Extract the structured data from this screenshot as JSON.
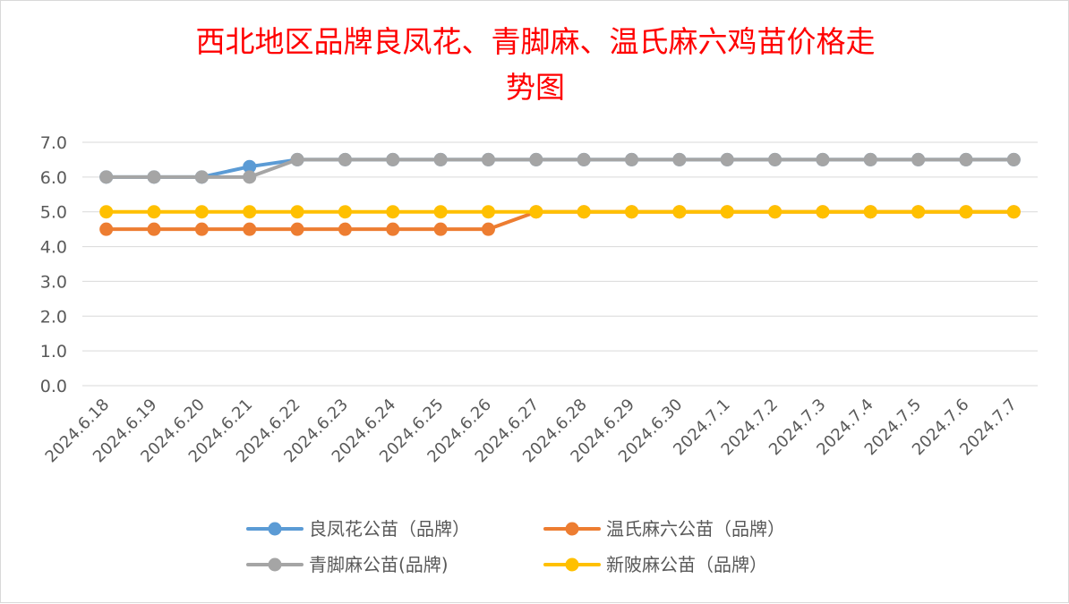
{
  "chart_data": {
    "type": "line",
    "title_lines": [
      "西北地区品牌良凤花、青脚麻、温氏麻六鸡苗价格走",
      "势图"
    ],
    "categories": [
      "2024.6.18",
      "2024.6.19",
      "2024.6.20",
      "2024.6.21",
      "2024.6.22",
      "2024.6.23",
      "2024.6.24",
      "2024.6.25",
      "2024.6.26",
      "2024.6.27",
      "2024.6.28",
      "2024.6.29",
      "2024.6.30",
      "2024.7.1",
      "2024.7.2",
      "2024.7.3",
      "2024.7.4",
      "2024.7.5",
      "2024.7.6",
      "2024.7.7"
    ],
    "y_ticks": [
      "0.0",
      "1.0",
      "2.0",
      "3.0",
      "4.0",
      "5.0",
      "6.0",
      "7.0"
    ],
    "ylim": [
      0,
      7
    ],
    "grid": true,
    "legend_position": "bottom",
    "series": [
      {
        "name": "良凤花公苗（品牌）",
        "color": "#5b9bd5",
        "values": [
          6.0,
          6.0,
          6.0,
          6.3,
          6.5,
          6.5,
          6.5,
          6.5,
          6.5,
          6.5,
          6.5,
          6.5,
          6.5,
          6.5,
          6.5,
          6.5,
          6.5,
          6.5,
          6.5,
          6.5
        ]
      },
      {
        "name": "温氏麻六公苗（品牌）",
        "color": "#ed7d31",
        "values": [
          4.5,
          4.5,
          4.5,
          4.5,
          4.5,
          4.5,
          4.5,
          4.5,
          4.5,
          5.0,
          5.0,
          5.0,
          5.0,
          5.0,
          5.0,
          5.0,
          5.0,
          5.0,
          5.0,
          5.0
        ]
      },
      {
        "name": "青脚麻公苗(品牌)",
        "color": "#a5a5a5",
        "values": [
          6.0,
          6.0,
          6.0,
          6.0,
          6.5,
          6.5,
          6.5,
          6.5,
          6.5,
          6.5,
          6.5,
          6.5,
          6.5,
          6.5,
          6.5,
          6.5,
          6.5,
          6.5,
          6.5,
          6.5
        ]
      },
      {
        "name": "新陂麻公苗（品牌）",
        "color": "#ffc000",
        "values": [
          5.0,
          5.0,
          5.0,
          5.0,
          5.0,
          5.0,
          5.0,
          5.0,
          5.0,
          5.0,
          5.0,
          5.0,
          5.0,
          5.0,
          5.0,
          5.0,
          5.0,
          5.0,
          5.0,
          5.0
        ]
      }
    ]
  }
}
